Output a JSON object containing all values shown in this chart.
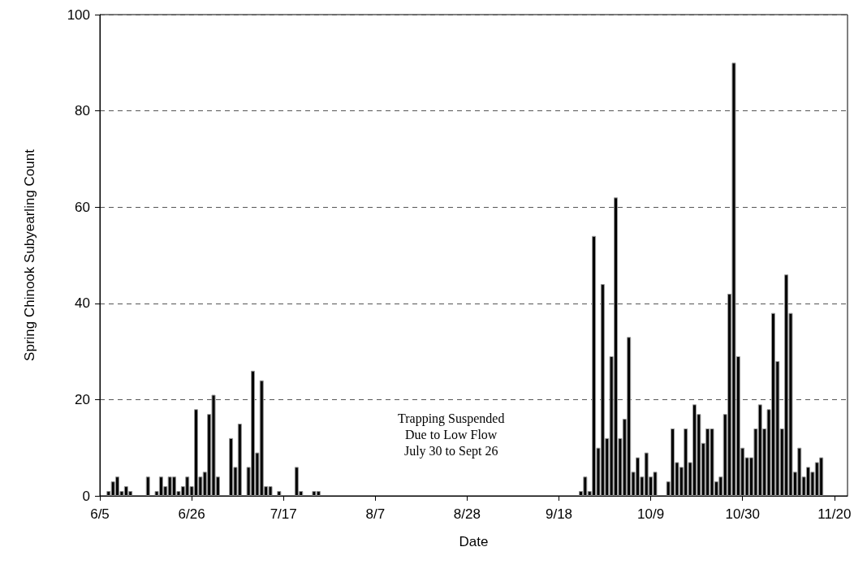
{
  "chart_data": {
    "type": "bar",
    "xlabel": "Date",
    "ylabel": "Spring Chinook Subyearling Count",
    "annotations": [
      "Trapping Suspended\nDue to Low Flow\nJuly 30 to Sept 26"
    ],
    "x": [
      "--06-07",
      "--06-08",
      "--06-09",
      "--06-10",
      "--06-11",
      "--06-12",
      "--06-16",
      "--06-18",
      "--06-19",
      "--06-20",
      "--06-21",
      "--06-22",
      "--06-23",
      "--06-24",
      "--06-25",
      "--06-26",
      "--06-27",
      "--06-28",
      "--06-29",
      "--06-30",
      "--07-01",
      "--07-02",
      "--07-05",
      "--07-06",
      "--07-07",
      "--07-09",
      "--07-10",
      "--07-11",
      "--07-12",
      "--07-13",
      "--07-14",
      "--07-16",
      "--07-20",
      "--07-21",
      "--07-24",
      "--07-25",
      "--09-23",
      "--09-24",
      "--09-25",
      "--09-26",
      "--09-27",
      "--09-28",
      "--09-29",
      "--09-30",
      "--10-01",
      "--10-02",
      "--10-03",
      "--10-04",
      "--10-05",
      "--10-06",
      "--10-07",
      "--10-08",
      "--10-09",
      "--10-10",
      "--10-13",
      "--10-14",
      "--10-15",
      "--10-16",
      "--10-17",
      "--10-18",
      "--10-19",
      "--10-20",
      "--10-21",
      "--10-22",
      "--10-23",
      "--10-24",
      "--10-25",
      "--10-26",
      "--10-27",
      "--10-28",
      "--10-29",
      "--10-30",
      "--10-31",
      "--11-01",
      "--11-02",
      "--11-03",
      "--11-04",
      "--11-05",
      "--11-06",
      "--11-07",
      "--11-08",
      "--11-09",
      "--11-10",
      "--11-11",
      "--11-12",
      "--11-13",
      "--11-14",
      "--11-15",
      "--11-16",
      "--11-17"
    ],
    "values": [
      1,
      3,
      4,
      1,
      2,
      1,
      4,
      1,
      4,
      2,
      4,
      4,
      1,
      2,
      4,
      2,
      18,
      4,
      5,
      17,
      21,
      4,
      12,
      6,
      15,
      6,
      26,
      9,
      24,
      2,
      2,
      1,
      6,
      1,
      1,
      1,
      1,
      4,
      1,
      54,
      10,
      44,
      12,
      29,
      62,
      12,
      16,
      33,
      5,
      8,
      4,
      9,
      4,
      5,
      3,
      14,
      7,
      6,
      14,
      7,
      19,
      17,
      11,
      14,
      14,
      3,
      4,
      17,
      42,
      90,
      29,
      10,
      8,
      8,
      14,
      19,
      14,
      18,
      38,
      28,
      14,
      46,
      38,
      5,
      10,
      4,
      6,
      5,
      7,
      8
    ],
    "color": "#000000",
    "xlim": [
      "--06-05",
      "--11-23"
    ],
    "xticks": [
      {
        "value": "--06-05",
        "label": "6/5"
      },
      {
        "value": "--06-26",
        "label": "6/26"
      },
      {
        "value": "--07-17",
        "label": "7/17"
      },
      {
        "value": "--08-07",
        "label": "8/7"
      },
      {
        "value": "--08-28",
        "label": "8/28"
      },
      {
        "value": "--09-18",
        "label": "9/18"
      },
      {
        "value": "--10-09",
        "label": "10/9"
      },
      {
        "value": "--10-30",
        "label": "10/30"
      },
      {
        "value": "--11-20",
        "label": "11/20"
      }
    ],
    "ylim": [
      0,
      100
    ],
    "yticks": [
      0,
      20,
      40,
      60,
      80,
      100
    ],
    "grid": "y"
  }
}
